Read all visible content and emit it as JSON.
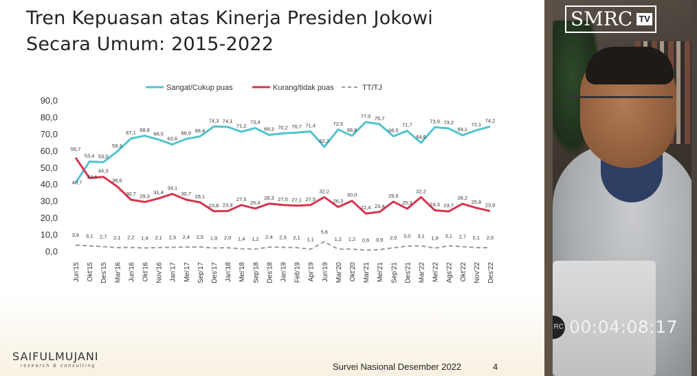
{
  "slide": {
    "title_line1": "Tren Kepuasan atas Kinerja Presiden Jokowi",
    "title_line2": "Secara Umum: 2015-2022",
    "brand": "SAIFULMUJANI",
    "brand_sub": "research & consulting",
    "survey": "Survei Nasional Desember 2022",
    "page_number": "4"
  },
  "video": {
    "logo_text": "SMRC",
    "logo_tv": "TV",
    "rec_label": "RC",
    "timecode": "00:04:08:17"
  },
  "colors": {
    "satisfied": "#4fc4cf",
    "dissatisfied": "#d6334d",
    "dontknow": "#999999"
  },
  "chart_data": {
    "type": "line",
    "title": "Tren Kepuasan atas Kinerja Presiden Jokowi Secara Umum: 2015-2022",
    "xlabel": "",
    "ylabel": "",
    "ylim": [
      0,
      90
    ],
    "yticks": [
      "0,0",
      "10,0",
      "20,0",
      "30,0",
      "40,0",
      "50,0",
      "60,0",
      "70,0",
      "80,0",
      "90,0"
    ],
    "legend_position": "top",
    "grid": false,
    "categories": [
      "Jun'15",
      "Okt'15",
      "Des'15",
      "Mar'16",
      "Jun'16",
      "Okt'16",
      "Nov'16",
      "Jan'17",
      "Mei'17",
      "Sep'17",
      "Des'17",
      "Jan'18",
      "Mei'18",
      "Sep'18",
      "Des'18",
      "Jan'19",
      "Feb'19",
      "Apr'19",
      "Jun'19",
      "Mar'20",
      "Okt'20",
      "Mar'21",
      "Mei'21",
      "Sep'21",
      "Des'21",
      "Mar'22",
      "Mei'22",
      "Ags'22",
      "Okt'22",
      "Nov'22",
      "Des'22"
    ],
    "series": [
      {
        "name": "Sangat/Cukup puas",
        "color_key": "satisfied",
        "dash": false,
        "values": [
          40.7,
          53.4,
          53.0,
          59.3,
          67.1,
          68.8,
          66.5,
          63.6,
          66.9,
          68.4,
          74.3,
          74.1,
          71.2,
          73.4,
          69.3,
          70.2,
          70.7,
          71.4,
          62.2,
          72.5,
          68.8,
          77.0,
          75.7,
          68.5,
          71.7,
          64.6,
          73.9,
          73.2,
          69.1,
          72.1,
          74.2
        ],
        "labels": [
          "40,7",
          "53,4",
          "53,0",
          "59,3",
          "67,1",
          "68,8",
          "66,5",
          "63,6",
          "66,9",
          "68,4",
          "74,3",
          "74,1",
          "71,2",
          "73,4",
          "69,3",
          "70,2",
          "70,7",
          "71,4",
          "62,2",
          "72,5",
          "68,8",
          "77,0",
          "75,7",
          "68,5",
          "71,7",
          "64,6",
          "73,9",
          "73,2",
          "69,1",
          "72,1",
          "74,2"
        ]
      },
      {
        "name": "Kurang/tidak puas",
        "color_key": "dissatisfied",
        "dash": false,
        "values": [
          55.7,
          43.6,
          44.3,
          38.6,
          30.7,
          29.3,
          31.4,
          34.1,
          30.7,
          29.1,
          23.8,
          23.9,
          27.5,
          25.4,
          28.3,
          27.5,
          27.1,
          27.5,
          32.2,
          26.3,
          30.0,
          22.4,
          23.4,
          29.5,
          25.3,
          32.2,
          24.3,
          23.7,
          28.2,
          25.8,
          23.9
        ],
        "labels": [
          "55,7",
          "43,6",
          "44,3",
          "38,6",
          "30,7",
          "29,3",
          "31,4",
          "34,1",
          "30,7",
          "29,1",
          "23,8",
          "23,9",
          "27,5",
          "25,4",
          "28,3",
          "27,5",
          "27,1",
          "27,5",
          "32,2",
          "26,3",
          "30,0",
          "22,4",
          "23,4",
          "29,5",
          "25,3",
          "32,2",
          "24,3",
          "23,7",
          "28,2",
          "25,8",
          "23,9"
        ]
      },
      {
        "name": "TT/TJ",
        "color_key": "dontknow",
        "dash": true,
        "values": [
          3.6,
          3.1,
          2.7,
          2.1,
          2.2,
          1.9,
          2.1,
          2.3,
          2.4,
          2.5,
          1.9,
          2.0,
          1.4,
          1.2,
          2.4,
          2.3,
          2.1,
          1.1,
          5.6,
          1.2,
          1.2,
          0.6,
          0.9,
          2.0,
          3.0,
          3.1,
          1.8,
          3.1,
          2.7,
          2.1,
          2.0
        ],
        "labels": [
          "3,6",
          "3,1",
          "2,7",
          "2,1",
          "2,2",
          "1,9",
          "2,1",
          "2,3",
          "2,4",
          "2,5",
          "1,9",
          "2,0",
          "1,4",
          "1,2",
          "2,4",
          "2,3",
          "2,1",
          "1,1",
          "5,6",
          "1,2",
          "1,2",
          "0,6",
          "0,9",
          "2,0",
          "3,0",
          "3,1",
          "1,8",
          "3,1",
          "2,7",
          "2,1",
          "2,0"
        ]
      }
    ]
  }
}
